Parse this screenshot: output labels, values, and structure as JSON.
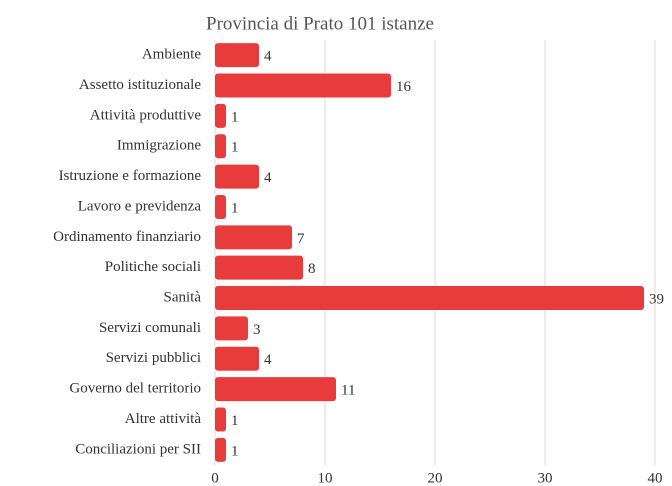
{
  "chart_data": {
    "type": "barh",
    "title": "Provincia di Prato 101 istanze",
    "categories": [
      "Ambiente",
      "Assetto istituzionale",
      "Attività produttive",
      "Immigrazione",
      "Istruzione e formazione",
      "Lavoro e previdenza",
      "Ordinamento finanziario",
      "Politiche sociali",
      "Sanità",
      "Servizi comunali",
      "Servizi pubblici",
      "Governo del territorio",
      "Altre attività",
      "Conciliazioni per SII"
    ],
    "values": [
      4,
      16,
      1,
      1,
      4,
      1,
      7,
      8,
      39,
      3,
      4,
      11,
      1,
      1
    ],
    "color": "#e83c3c",
    "xlim": [
      0,
      40
    ],
    "xticks": [
      0,
      10,
      20,
      30,
      40
    ],
    "grid": true
  }
}
